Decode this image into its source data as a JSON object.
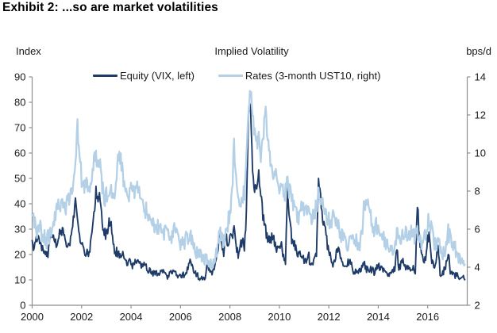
{
  "title": "Exhibit 2: ...so are market volatilities",
  "chart": {
    "left_unit_label": "Index",
    "right_unit_label": "bps/d",
    "plot_title": "Implied Volatility"
  },
  "chart_data": {
    "type": "line",
    "title": "Implied Volatility",
    "x_unit": "year",
    "x_range": [
      2000,
      2017.6
    ],
    "x_ticks": [
      "2000",
      "2002",
      "2004",
      "2006",
      "2008",
      "2010",
      "2012",
      "2014",
      "2016"
    ],
    "points_per_year": 12,
    "grid": false,
    "legend_position": "top",
    "left_axis": {
      "label": "Index",
      "min": 0,
      "max": 90,
      "ticks": [
        0,
        10,
        20,
        30,
        40,
        50,
        60,
        70,
        80,
        90
      ]
    },
    "right_axis": {
      "label": "bps/d",
      "min": 2,
      "max": 14,
      "ticks": [
        2,
        4,
        6,
        8,
        10,
        12,
        14
      ]
    },
    "series": [
      {
        "name": "Equity (VIX, left)",
        "axis": "left",
        "color": "#1F3C69",
        "values": [
          24.5,
          23.5,
          26,
          28,
          25.5,
          22,
          20.5,
          19,
          21.5,
          26,
          29,
          26.5,
          24,
          26.5,
          30,
          29,
          26.5,
          23,
          24.5,
          25.5,
          34,
          41,
          33,
          25.5,
          23.5,
          22,
          20,
          20.5,
          22.5,
          27,
          35,
          45,
          42,
          43.5,
          31,
          29,
          27.5,
          32,
          34,
          25,
          21.5,
          21,
          19.5,
          19.5,
          20,
          17.5,
          16.5,
          17,
          16.5,
          15.5,
          17.5,
          16.5,
          16,
          15,
          15.5,
          15.5,
          14,
          14,
          13,
          12.5,
          13,
          12,
          13.5,
          14.5,
          13.5,
          12,
          11,
          13,
          12.5,
          14.5,
          12,
          11.5,
          11,
          12,
          12,
          12.5,
          16.5,
          18.5,
          14.5,
          12.5,
          12,
          11,
          10.5,
          11,
          10.5,
          16,
          14.5,
          13,
          13,
          16,
          21,
          29,
          24,
          20,
          28,
          22.5,
          26,
          26,
          29.5,
          23,
          19.5,
          23.5,
          25.5,
          21.5,
          35,
          75,
          80,
          52,
          45,
          47,
          52,
          43,
          35.5,
          30.5,
          27.5,
          26,
          25.5,
          28.5,
          24,
          22,
          22.5,
          23,
          19,
          17,
          45,
          34,
          26,
          25,
          23,
          20,
          19.5,
          18,
          18,
          17,
          20.5,
          16.5,
          16.5,
          18.5,
          19.5,
          48,
          42,
          34,
          30,
          26,
          21,
          18,
          16.5,
          17.5,
          22,
          21,
          17,
          15,
          14.5,
          16.5,
          17,
          16.5,
          13.5,
          13.5,
          13,
          14,
          14.5,
          17,
          14.5,
          14,
          14.5,
          14,
          13,
          14,
          17,
          14,
          14.5,
          13.5,
          12,
          11.5,
          13,
          13,
          14.5,
          24,
          14,
          16.5,
          19,
          15,
          15.5,
          13.5,
          13.5,
          14.5,
          13.5,
          40.5,
          26,
          22,
          16.5,
          18,
          27.5,
          26,
          18,
          15,
          15.5,
          25.5,
          13,
          12,
          14,
          16,
          22,
          13,
          12,
          11.5,
          12,
          11,
          10.5,
          10.5,
          11
        ]
      },
      {
        "name": "Rates (3-month UST10, right)",
        "axis": "right",
        "color": "#B4D0E7",
        "values": [
          6.8,
          6.4,
          6.1,
          5.8,
          6.0,
          5.7,
          5.5,
          5.4,
          5.6,
          5.9,
          6.3,
          6.6,
          7.0,
          7.3,
          7.5,
          7.2,
          7.0,
          7.4,
          7.6,
          7.8,
          8.5,
          9.2,
          11.4,
          10.0,
          8.7,
          8.1,
          8.3,
          8.0,
          8.3,
          8.8,
          9.5,
          10.0,
          9.3,
          9.8,
          8.3,
          7.6,
          7.8,
          7.6,
          8.0,
          7.7,
          8.0,
          9.0,
          10.0,
          9.6,
          8.8,
          8.2,
          7.8,
          7.6,
          8.2,
          7.9,
          7.7,
          8.3,
          8.0,
          7.5,
          7.2,
          7.0,
          6.8,
          6.5,
          6.4,
          6.2,
          6.3,
          6.1,
          6.4,
          6.1,
          5.9,
          5.7,
          5.6,
          5.8,
          5.6,
          5.9,
          5.7,
          5.4,
          5.3,
          5.2,
          5.3,
          5.5,
          5.4,
          5.6,
          5.3,
          5.0,
          4.8,
          4.7,
          4.6,
          4.5,
          4.4,
          4.5,
          4.3,
          4.2,
          4.1,
          4.6,
          5.0,
          5.8,
          5.5,
          5.3,
          6.0,
          6.3,
          7.0,
          7.8,
          10.5,
          8.5,
          7.4,
          7.6,
          7.5,
          8.0,
          9.5,
          12.2,
          13.2,
          12.0,
          11.0,
          10.4,
          10.9,
          9.8,
          10.6,
          12.5,
          11.4,
          10.0,
          9.2,
          8.8,
          9.0,
          8.8,
          8.2,
          8.0,
          7.8,
          8.0,
          8.4,
          8.0,
          7.6,
          7.3,
          7.0,
          6.4,
          6.8,
          7.2,
          7.0,
          6.8,
          7.2,
          6.9,
          6.6,
          6.8,
          7.2,
          7.7,
          7.4,
          7.8,
          7.2,
          6.8,
          6.5,
          6.3,
          6.6,
          6.2,
          6.4,
          6.0,
          5.7,
          5.5,
          5.4,
          5.3,
          5.2,
          5.3,
          5.3,
          5.4,
          5.2,
          5.1,
          5.8,
          7.0,
          7.5,
          7.2,
          6.8,
          6.2,
          6.0,
          6.2,
          6.2,
          5.9,
          5.7,
          5.4,
          5.2,
          5.0,
          4.9,
          5.0,
          5.3,
          5.7,
          5.4,
          5.6,
          5.8,
          5.9,
          5.7,
          5.5,
          5.9,
          5.8,
          5.6,
          5.7,
          5.5,
          5.2,
          5.4,
          5.6,
          6.5,
          6.3,
          5.8,
          5.4,
          5.0,
          5.4,
          4.9,
          4.6,
          4.8,
          5.2,
          5.8,
          5.6,
          5.4,
          5.0,
          4.9,
          4.6,
          4.3,
          4.1,
          4.1
        ]
      }
    ]
  }
}
